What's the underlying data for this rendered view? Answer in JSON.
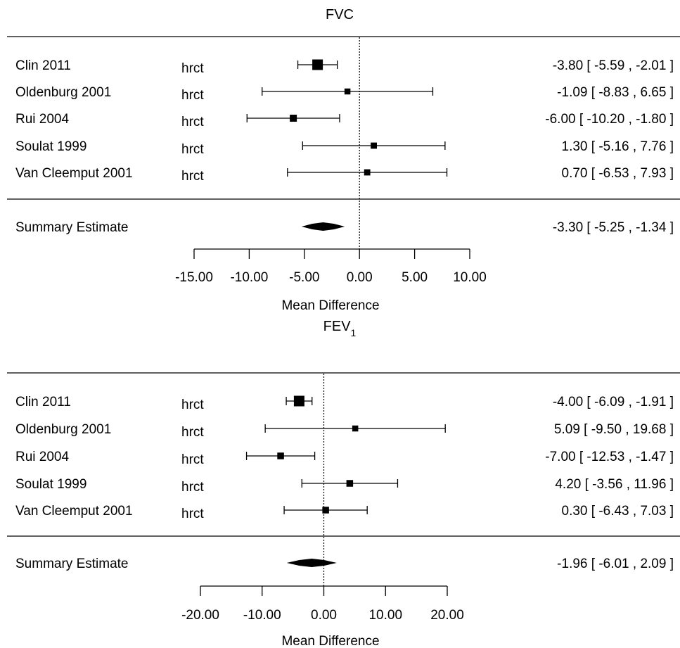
{
  "chart_data": [
    {
      "type": "forest",
      "title": "FVC",
      "title_sub": "",
      "xlabel": "Mean Difference",
      "xlim": [
        -15,
        10
      ],
      "ticks": [
        -15,
        -10,
        -5,
        0,
        5,
        10
      ],
      "tick_labels": [
        "-15.00",
        "-10.00",
        "-5.00",
        "0.00",
        "5.00",
        "10.00"
      ],
      "reference_line": 0,
      "studies": [
        {
          "name": "Clin 2011",
          "method": "hrct",
          "estimate": -3.8,
          "lower": -5.59,
          "upper": -2.01,
          "weight": 1.0,
          "ci_text": "-3.80 [  -5.59 , -2.01 ]"
        },
        {
          "name": "Oldenburg 2001",
          "method": "hrct",
          "estimate": -1.09,
          "lower": -8.83,
          "upper": 6.65,
          "weight": 0.35,
          "ci_text": "-1.09 [  -8.83 ,  6.65 ]"
        },
        {
          "name": "Rui 2004",
          "method": "hrct",
          "estimate": -6.0,
          "lower": -10.2,
          "upper": -1.8,
          "weight": 0.5,
          "ci_text": "-6.00 [ -10.20 , -1.80 ]"
        },
        {
          "name": "Soulat 1999",
          "method": "hrct",
          "estimate": 1.3,
          "lower": -5.16,
          "upper": 7.76,
          "weight": 0.38,
          "ci_text": "1.30 [  -5.16 ,  7.76 ]"
        },
        {
          "name": "Van Cleemput 2001",
          "method": "hrct",
          "estimate": 0.7,
          "lower": -6.53,
          "upper": 7.93,
          "weight": 0.38,
          "ci_text": "0.70 [  -6.53 ,  7.93 ]"
        }
      ],
      "summary": {
        "name": "Summary Estimate",
        "estimate": -3.3,
        "lower": -5.25,
        "upper": -1.34,
        "ci_text": "-3.30 [  -5.25 , -1.34 ]"
      }
    },
    {
      "type": "forest",
      "title": "FEV",
      "title_sub": "1",
      "xlabel": "Mean Difference",
      "xlim": [
        -20,
        20
      ],
      "ticks": [
        -20,
        -10,
        0,
        10,
        20
      ],
      "tick_labels": [
        "-20.00",
        "-10.00",
        "0.00",
        "10.00",
        "20.00"
      ],
      "reference_line": 0,
      "studies": [
        {
          "name": "Clin 2011",
          "method": "hrct",
          "estimate": -4.0,
          "lower": -6.09,
          "upper": -1.91,
          "weight": 1.0,
          "ci_text": "-4.00 [  -6.09 , -1.91 ]"
        },
        {
          "name": "Oldenburg 2001",
          "method": "hrct",
          "estimate": 5.09,
          "lower": -9.5,
          "upper": 19.68,
          "weight": 0.35,
          "ci_text": "5.09 [  -9.50 , 19.68 ]"
        },
        {
          "name": "Rui 2004",
          "method": "hrct",
          "estimate": -7.0,
          "lower": -12.53,
          "upper": -1.47,
          "weight": 0.45,
          "ci_text": "-7.00 [ -12.53 , -1.47 ]"
        },
        {
          "name": "Soulat 1999",
          "method": "hrct",
          "estimate": 4.2,
          "lower": -3.56,
          "upper": 11.96,
          "weight": 0.45,
          "ci_text": "4.20 [  -3.56 , 11.96 ]"
        },
        {
          "name": "Van Cleemput 2001",
          "method": "hrct",
          "estimate": 0.3,
          "lower": -6.43,
          "upper": 7.03,
          "weight": 0.45,
          "ci_text": "0.30 [  -6.43 ,  7.03 ]"
        }
      ],
      "summary": {
        "name": "Summary Estimate",
        "estimate": -1.96,
        "lower": -6.01,
        "upper": 2.09,
        "ci_text": "-1.96 [  -6.01 ,  2.09 ]"
      }
    }
  ]
}
